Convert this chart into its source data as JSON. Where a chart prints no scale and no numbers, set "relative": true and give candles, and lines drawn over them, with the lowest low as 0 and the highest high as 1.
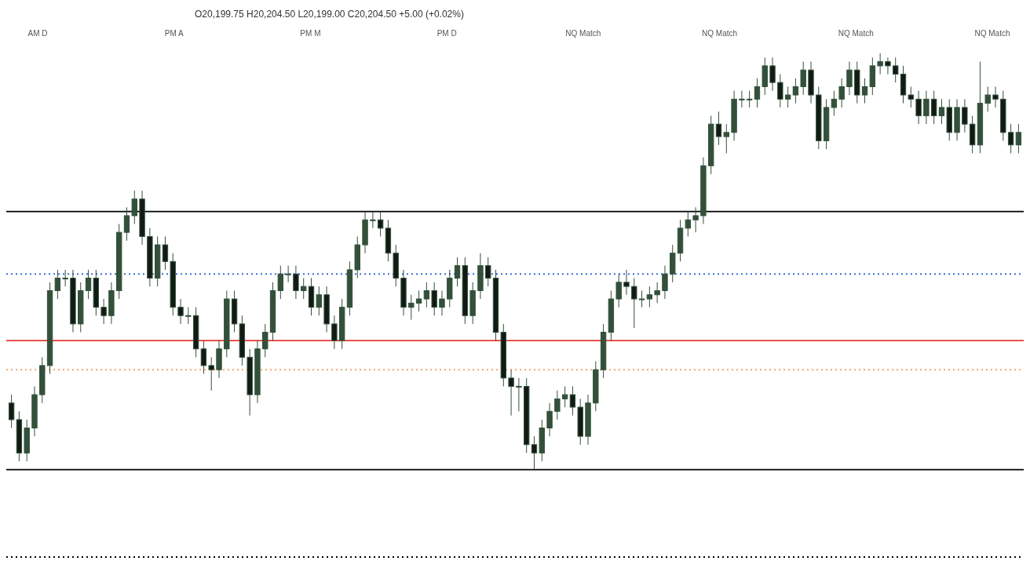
{
  "chart_data": {
    "type": "candlestick",
    "relative": true,
    "categories": [
      null,
      null,
      null,
      null,
      null,
      null,
      null,
      null,
      null,
      null,
      null,
      null,
      null,
      null,
      null,
      null,
      null,
      null,
      null,
      null,
      null,
      null,
      null,
      null,
      null,
      null,
      null,
      null,
      null,
      null,
      null,
      null,
      null,
      null,
      null,
      null,
      null,
      null,
      null,
      null,
      null,
      null,
      null,
      null,
      null,
      null,
      null,
      null,
      null,
      null,
      null,
      null,
      null,
      null,
      null,
      null,
      null,
      null,
      null,
      null,
      null,
      null,
      null,
      null,
      null,
      null,
      null,
      null,
      null,
      null,
      null,
      null,
      null,
      null,
      null,
      null,
      null,
      null,
      null,
      null,
      null,
      null,
      null,
      null,
      null,
      null,
      null,
      null,
      null,
      null,
      null,
      null,
      null,
      null,
      null,
      null,
      null,
      null,
      null,
      null,
      null,
      null,
      null,
      null,
      null,
      null,
      null,
      null,
      null,
      null,
      null,
      null,
      null,
      null,
      null,
      null,
      null,
      null,
      null,
      null,
      null,
      null,
      null,
      null,
      null,
      null,
      null,
      null,
      null,
      null,
      null,
      null
    ],
    "series": [
      {
        "color": "#33503a",
        "ohlc": [
          [
            0.16,
            0.18,
            0.1,
            0.12
          ],
          [
            0.12,
            0.14,
            0.02,
            0.04
          ],
          [
            0.04,
            0.12,
            0.02,
            0.1
          ],
          [
            0.1,
            0.2,
            0.08,
            0.18
          ],
          [
            0.18,
            0.27,
            0.16,
            0.25
          ],
          [
            0.25,
            0.45,
            0.23,
            0.43
          ],
          [
            0.43,
            0.48,
            0.41,
            0.46
          ],
          [
            0.46,
            0.48,
            0.44,
            0.46
          ],
          [
            0.46,
            0.48,
            0.33,
            0.35
          ],
          [
            0.35,
            0.45,
            0.33,
            0.43
          ],
          [
            0.43,
            0.48,
            0.41,
            0.46
          ],
          [
            0.46,
            0.48,
            0.37,
            0.39
          ],
          [
            0.39,
            0.41,
            0.35,
            0.37
          ],
          [
            0.37,
            0.45,
            0.35,
            0.43
          ],
          [
            0.43,
            0.59,
            0.41,
            0.57
          ],
          [
            0.57,
            0.63,
            0.55,
            0.61
          ],
          [
            0.61,
            0.67,
            0.59,
            0.65
          ],
          [
            0.65,
            0.67,
            0.54,
            0.56
          ],
          [
            0.56,
            0.58,
            0.44,
            0.46
          ],
          [
            0.46,
            0.56,
            0.44,
            0.54
          ],
          [
            0.54,
            0.56,
            0.48,
            0.5
          ],
          [
            0.5,
            0.52,
            0.37,
            0.39
          ],
          [
            0.39,
            0.41,
            0.35,
            0.37
          ],
          [
            0.37,
            0.39,
            0.35,
            0.37
          ],
          [
            0.37,
            0.39,
            0.27,
            0.29
          ],
          [
            0.29,
            0.31,
            0.23,
            0.25
          ],
          [
            0.25,
            0.27,
            0.19,
            0.24
          ],
          [
            0.24,
            0.31,
            0.22,
            0.29
          ],
          [
            0.29,
            0.43,
            0.27,
            0.41
          ],
          [
            0.41,
            0.43,
            0.33,
            0.35
          ],
          [
            0.35,
            0.37,
            0.25,
            0.27
          ],
          [
            0.27,
            0.29,
            0.13,
            0.18
          ],
          [
            0.18,
            0.31,
            0.16,
            0.29
          ],
          [
            0.29,
            0.35,
            0.27,
            0.33
          ],
          [
            0.33,
            0.45,
            0.31,
            0.43
          ],
          [
            0.43,
            0.49,
            0.41,
            0.47
          ],
          [
            0.47,
            0.49,
            0.45,
            0.47
          ],
          [
            0.47,
            0.49,
            0.41,
            0.43
          ],
          [
            0.43,
            0.46,
            0.41,
            0.44
          ],
          [
            0.44,
            0.46,
            0.37,
            0.39
          ],
          [
            0.39,
            0.44,
            0.37,
            0.42
          ],
          [
            0.42,
            0.44,
            0.33,
            0.35
          ],
          [
            0.35,
            0.37,
            0.29,
            0.31
          ],
          [
            0.31,
            0.41,
            0.29,
            0.39
          ],
          [
            0.39,
            0.5,
            0.37,
            0.48
          ],
          [
            0.48,
            0.56,
            0.46,
            0.54
          ],
          [
            0.54,
            0.62,
            0.52,
            0.6
          ],
          [
            0.6,
            0.62,
            0.58,
            0.6
          ],
          [
            0.6,
            0.62,
            0.56,
            0.58
          ],
          [
            0.58,
            0.6,
            0.5,
            0.52
          ],
          [
            0.52,
            0.54,
            0.44,
            0.46
          ],
          [
            0.46,
            0.48,
            0.37,
            0.39
          ],
          [
            0.39,
            0.42,
            0.36,
            0.4
          ],
          [
            0.4,
            0.43,
            0.38,
            0.41
          ],
          [
            0.41,
            0.45,
            0.39,
            0.43
          ],
          [
            0.43,
            0.45,
            0.37,
            0.39
          ],
          [
            0.39,
            0.43,
            0.37,
            0.41
          ],
          [
            0.41,
            0.48,
            0.39,
            0.46
          ],
          [
            0.46,
            0.51,
            0.44,
            0.49
          ],
          [
            0.49,
            0.51,
            0.35,
            0.37
          ],
          [
            0.37,
            0.45,
            0.35,
            0.43
          ],
          [
            0.43,
            0.52,
            0.41,
            0.49
          ],
          [
            0.49,
            0.51,
            0.44,
            0.46
          ],
          [
            0.46,
            0.48,
            0.31,
            0.33
          ],
          [
            0.33,
            0.35,
            0.2,
            0.22
          ],
          [
            0.22,
            0.24,
            0.13,
            0.2
          ],
          [
            0.2,
            0.22,
            0.14,
            0.2
          ],
          [
            0.2,
            0.22,
            0.04,
            0.06
          ],
          [
            0.06,
            0.08,
            0.0,
            0.04
          ],
          [
            0.04,
            0.12,
            0.02,
            0.1
          ],
          [
            0.1,
            0.16,
            0.08,
            0.14
          ],
          [
            0.14,
            0.19,
            0.12,
            0.17
          ],
          [
            0.17,
            0.2,
            0.15,
            0.18
          ],
          [
            0.18,
            0.2,
            0.13,
            0.15
          ],
          [
            0.15,
            0.17,
            0.06,
            0.08
          ],
          [
            0.08,
            0.18,
            0.06,
            0.16
          ],
          [
            0.16,
            0.26,
            0.14,
            0.24
          ],
          [
            0.24,
            0.35,
            0.22,
            0.33
          ],
          [
            0.33,
            0.43,
            0.31,
            0.41
          ],
          [
            0.41,
            0.47,
            0.39,
            0.45
          ],
          [
            0.45,
            0.48,
            0.42,
            0.44
          ],
          [
            0.44,
            0.46,
            0.34,
            0.41
          ],
          [
            0.41,
            0.43,
            0.39,
            0.41
          ],
          [
            0.41,
            0.44,
            0.39,
            0.42
          ],
          [
            0.42,
            0.45,
            0.4,
            0.43
          ],
          [
            0.43,
            0.49,
            0.41,
            0.47
          ],
          [
            0.47,
            0.54,
            0.45,
            0.52
          ],
          [
            0.52,
            0.6,
            0.5,
            0.58
          ],
          [
            0.58,
            0.62,
            0.56,
            0.6
          ],
          [
            0.6,
            0.63,
            0.57,
            0.61
          ],
          [
            0.61,
            0.75,
            0.59,
            0.73
          ],
          [
            0.73,
            0.85,
            0.71,
            0.83
          ],
          [
            0.83,
            0.86,
            0.78,
            0.8
          ],
          [
            0.8,
            0.83,
            0.76,
            0.81
          ],
          [
            0.81,
            0.91,
            0.79,
            0.89
          ],
          [
            0.89,
            0.91,
            0.87,
            0.89
          ],
          [
            0.89,
            0.91,
            0.87,
            0.89
          ],
          [
            0.89,
            0.94,
            0.87,
            0.92
          ],
          [
            0.92,
            0.99,
            0.9,
            0.97
          ],
          [
            0.97,
            0.99,
            0.91,
            0.93
          ],
          [
            0.93,
            0.95,
            0.87,
            0.89
          ],
          [
            0.89,
            0.92,
            0.87,
            0.9
          ],
          [
            0.9,
            0.94,
            0.88,
            0.92
          ],
          [
            0.92,
            0.98,
            0.9,
            0.96
          ],
          [
            0.96,
            0.98,
            0.88,
            0.9
          ],
          [
            0.9,
            0.92,
            0.77,
            0.79
          ],
          [
            0.79,
            0.89,
            0.77,
            0.87
          ],
          [
            0.87,
            0.91,
            0.85,
            0.89
          ],
          [
            0.89,
            0.94,
            0.87,
            0.92
          ],
          [
            0.92,
            0.98,
            0.9,
            0.96
          ],
          [
            0.96,
            0.98,
            0.88,
            0.9
          ],
          [
            0.9,
            0.94,
            0.88,
            0.92
          ],
          [
            0.92,
            0.99,
            0.9,
            0.97
          ],
          [
            0.97,
            1.0,
            0.95,
            0.98
          ],
          [
            0.98,
            0.99,
            0.95,
            0.97
          ],
          [
            0.97,
            0.99,
            0.93,
            0.95
          ],
          [
            0.95,
            0.97,
            0.88,
            0.9
          ],
          [
            0.9,
            0.92,
            0.87,
            0.89
          ],
          [
            0.89,
            0.91,
            0.83,
            0.85
          ],
          [
            0.85,
            0.91,
            0.83,
            0.89
          ],
          [
            0.89,
            0.91,
            0.83,
            0.85
          ],
          [
            0.85,
            0.89,
            0.83,
            0.87
          ],
          [
            0.87,
            0.89,
            0.79,
            0.81
          ],
          [
            0.81,
            0.89,
            0.79,
            0.87
          ],
          [
            0.87,
            0.89,
            0.81,
            0.83
          ],
          [
            0.83,
            0.85,
            0.76,
            0.78
          ],
          [
            0.78,
            0.98,
            0.76,
            0.88
          ],
          [
            0.88,
            0.92,
            0.86,
            0.9
          ],
          [
            0.9,
            0.92,
            0.87,
            0.89
          ],
          [
            0.89,
            0.91,
            0.79,
            0.81
          ],
          [
            0.81,
            0.83,
            0.76,
            0.78
          ],
          [
            0.78,
            0.83,
            0.76,
            0.81
          ]
        ]
      }
    ],
    "ref_lines": [
      {
        "axis": "y",
        "value": 0.62,
        "color": "#000000",
        "line_style": "solid"
      },
      {
        "axis": "y",
        "value": 0,
        "color": "#000000",
        "line_style": "solid"
      },
      {
        "axis": "y",
        "value": 0.47,
        "color": "#3a6fd8",
        "line_style": "dotted"
      },
      {
        "axis": "y",
        "value": 0.31,
        "color": "#e53935",
        "line_style": "solid"
      },
      {
        "axis": "y",
        "value": 0.24,
        "color": "#f5a36b",
        "line_style": "dotted"
      },
      {
        "axis": "y",
        "value": -0.21,
        "color": "#000000",
        "line_style": "dotted"
      }
    ],
    "annotations": [
      "O20,199.75 H20,204.50 L20,199.00 C20,204.50 +5.00 (+0.02%)",
      "AM D",
      "PM A",
      "PM M",
      "PM D",
      "NQ Match",
      "NQ Match",
      "NQ Match",
      "NQ Match"
    ]
  }
}
